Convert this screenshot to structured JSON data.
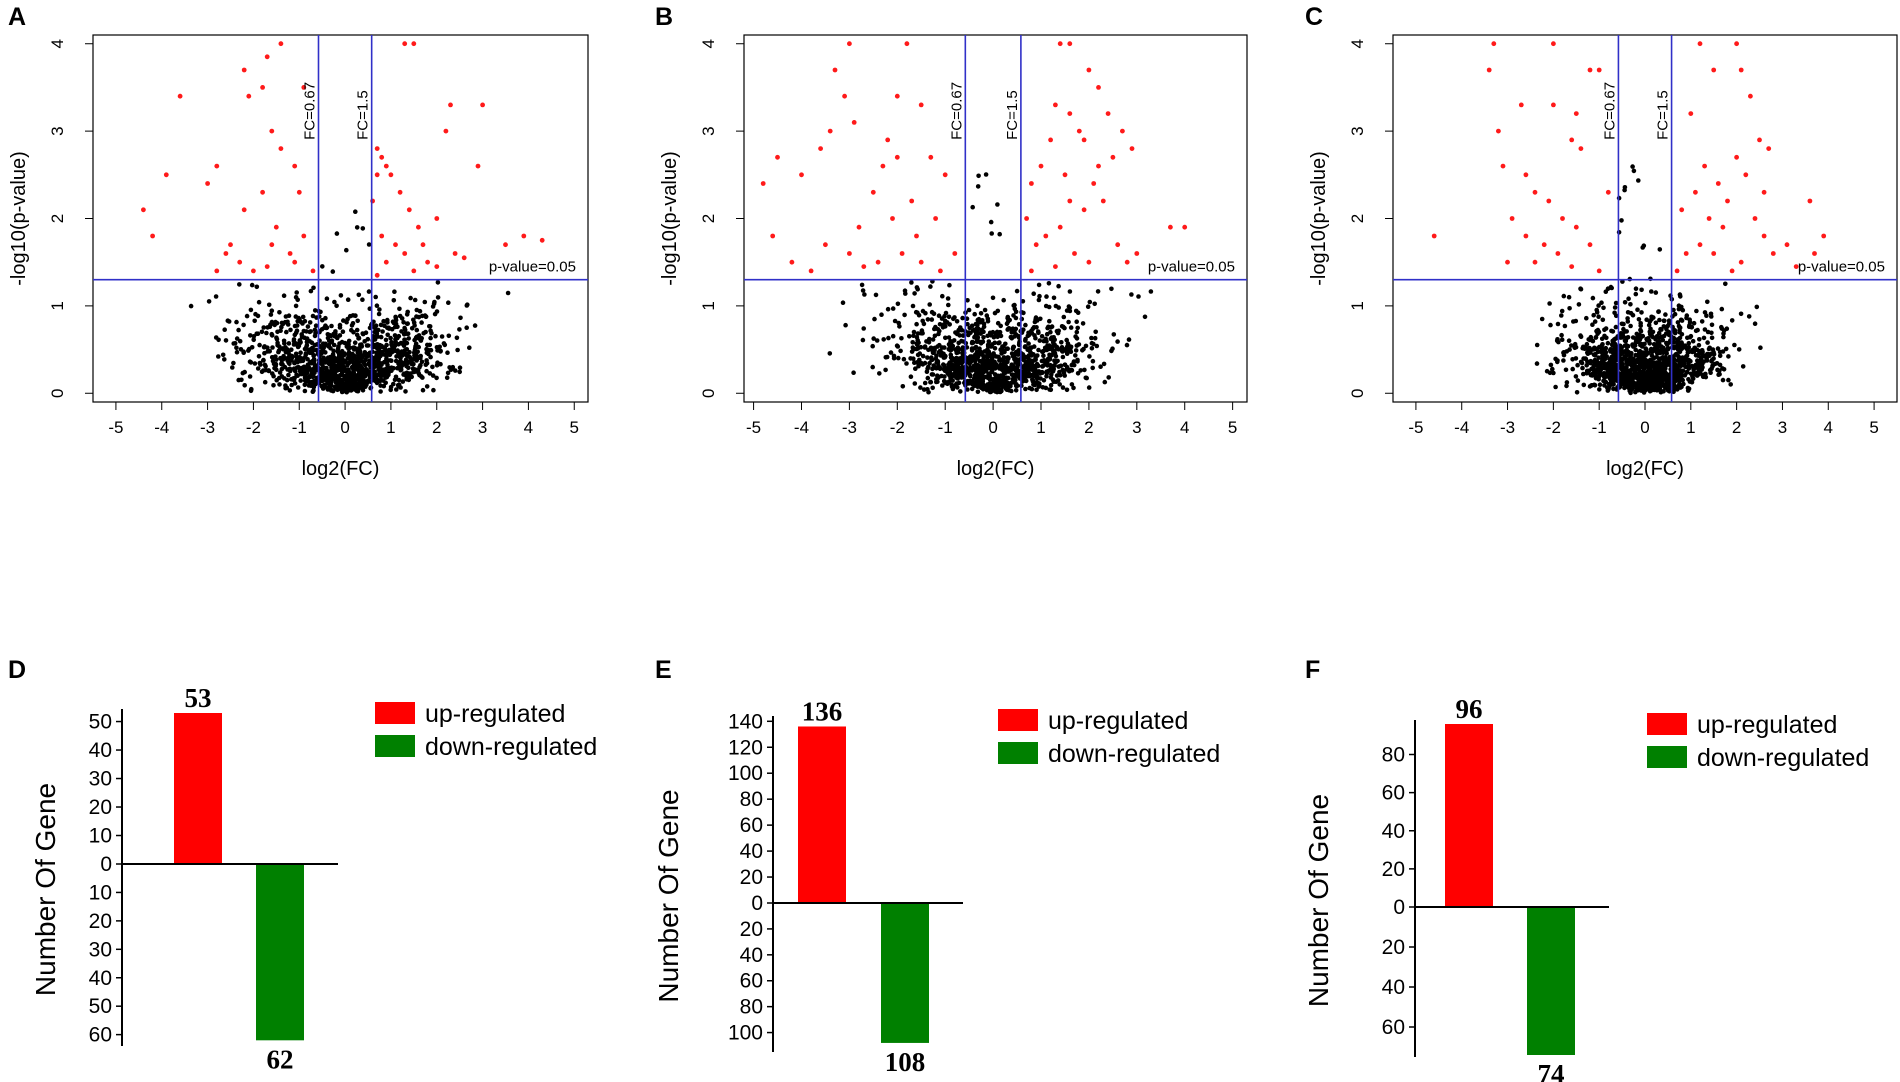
{
  "figure": {
    "colors": {
      "up": "#ff1a1a",
      "up_bar": "#ff0000",
      "down_bar": "#008000",
      "ns": "#000000",
      "threshold": "#3030c8"
    }
  },
  "chart_data": [
    {
      "panel": "A",
      "type": "scatter",
      "title": "",
      "xlabel": "log2(FC)",
      "ylabel": "-log10(p-value)",
      "xlim": [
        -5.5,
        5.3
      ],
      "ylim": [
        -0.1,
        4.1
      ],
      "xticks": [
        "-5",
        "-4",
        "-3",
        "-2",
        "-1",
        "0",
        "1",
        "2",
        "3",
        "4",
        "5"
      ],
      "yticks": [
        "0",
        "1",
        "2",
        "3",
        "4"
      ],
      "thresholds": {
        "fc_low": -0.58,
        "fc_high": 0.58,
        "p": 1.3
      },
      "annotations": {
        "fc_low": "FC=0.67",
        "fc_high": "FC=1.5",
        "p": "p-value=0.05"
      },
      "seed": 11,
      "n_ns": 1300,
      "spread_x": 1.05,
      "up_points": [
        [
          -1.4,
          4.0
        ],
        [
          1.3,
          4.0
        ],
        [
          1.5,
          4.0
        ],
        [
          -1.7,
          3.85
        ],
        [
          -1.8,
          3.5
        ],
        [
          -2.2,
          3.7
        ],
        [
          -3.6,
          3.4
        ],
        [
          -2.1,
          3.4
        ],
        [
          -0.9,
          3.5
        ],
        [
          2.2,
          3.0
        ],
        [
          2.3,
          3.3
        ],
        [
          3.0,
          3.3
        ],
        [
          2.9,
          2.6
        ],
        [
          -2.8,
          2.6
        ],
        [
          -3.0,
          2.4
        ],
        [
          -1.6,
          3.0
        ],
        [
          -1.4,
          2.8
        ],
        [
          -1.1,
          2.6
        ],
        [
          -1.0,
          2.3
        ],
        [
          -3.9,
          2.5
        ],
        [
          -4.4,
          2.1
        ],
        [
          -4.2,
          1.8
        ],
        [
          -2.2,
          2.1
        ],
        [
          -1.8,
          2.3
        ],
        [
          -1.5,
          1.9
        ],
        [
          -1.6,
          1.7
        ],
        [
          -2.5,
          1.7
        ],
        [
          -2.6,
          1.6
        ],
        [
          -2.3,
          1.5
        ],
        [
          -2.0,
          1.4
        ],
        [
          -1.7,
          1.45
        ],
        [
          -1.2,
          1.6
        ],
        [
          -1.1,
          1.5
        ],
        [
          -0.7,
          1.4
        ],
        [
          -0.9,
          1.8
        ],
        [
          -2.8,
          1.4
        ],
        [
          0.7,
          2.8
        ],
        [
          0.8,
          2.7
        ],
        [
          0.9,
          2.6
        ],
        [
          1.0,
          2.5
        ],
        [
          0.7,
          2.5
        ],
        [
          1.2,
          2.3
        ],
        [
          0.6,
          2.2
        ],
        [
          1.4,
          2.1
        ],
        [
          1.6,
          1.9
        ],
        [
          0.8,
          1.8
        ],
        [
          1.1,
          1.7
        ],
        [
          1.3,
          1.6
        ],
        [
          0.9,
          1.5
        ],
        [
          2.4,
          1.6
        ],
        [
          2.6,
          1.55
        ],
        [
          1.8,
          1.5
        ],
        [
          2.0,
          1.45
        ],
        [
          1.5,
          1.4
        ],
        [
          0.7,
          1.35
        ],
        [
          3.5,
          1.7
        ],
        [
          4.3,
          1.75
        ],
        [
          3.9,
          1.8
        ],
        [
          2.0,
          2.0
        ],
        [
          1.7,
          1.7
        ]
      ]
    },
    {
      "panel": "B",
      "type": "scatter",
      "title": "",
      "xlabel": "log2(FC)",
      "ylabel": "-log10(p-value)",
      "xlim": [
        -5.2,
        5.3
      ],
      "ylim": [
        -0.1,
        4.1
      ],
      "xticks": [
        "-5",
        "-4",
        "-3",
        "-2",
        "-1",
        "0",
        "1",
        "2",
        "3",
        "4",
        "5"
      ],
      "yticks": [
        "0",
        "1",
        "2",
        "3",
        "4"
      ],
      "thresholds": {
        "fc_low": -0.58,
        "fc_high": 0.58,
        "p": 1.3
      },
      "annotations": {
        "fc_low": "FC=0.67",
        "fc_high": "FC=1.5",
        "p": "p-value=0.05"
      },
      "seed": 23,
      "n_ns": 1200,
      "spread_x": 1.0,
      "up_points": [
        [
          -3.0,
          4.0
        ],
        [
          -1.8,
          4.0
        ],
        [
          1.4,
          4.0
        ],
        [
          1.6,
          4.0
        ],
        [
          -3.3,
          3.7
        ],
        [
          -3.1,
          3.4
        ],
        [
          -2.0,
          3.4
        ],
        [
          -1.5,
          3.3
        ],
        [
          2.0,
          3.7
        ],
        [
          2.2,
          3.5
        ],
        [
          -2.9,
          3.1
        ],
        [
          -3.4,
          3.0
        ],
        [
          -2.2,
          2.9
        ],
        [
          -1.3,
          2.7
        ],
        [
          -1.0,
          2.5
        ],
        [
          -3.6,
          2.8
        ],
        [
          -4.0,
          2.5
        ],
        [
          -4.5,
          2.7
        ],
        [
          -4.8,
          2.4
        ],
        [
          -4.6,
          1.8
        ],
        [
          -2.5,
          2.3
        ],
        [
          -2.1,
          2.0
        ],
        [
          -1.7,
          2.2
        ],
        [
          -1.2,
          2.0
        ],
        [
          -2.8,
          1.9
        ],
        [
          -3.5,
          1.7
        ],
        [
          -3.0,
          1.6
        ],
        [
          -2.4,
          1.5
        ],
        [
          -1.9,
          1.6
        ],
        [
          -1.5,
          1.5
        ],
        [
          -0.8,
          1.6
        ],
        [
          -3.8,
          1.4
        ],
        [
          -4.2,
          1.5
        ],
        [
          -2.7,
          1.45
        ],
        [
          -1.1,
          1.4
        ],
        [
          1.3,
          3.3
        ],
        [
          1.6,
          3.2
        ],
        [
          1.8,
          3.0
        ],
        [
          2.4,
          3.2
        ],
        [
          2.7,
          3.0
        ],
        [
          2.9,
          2.8
        ],
        [
          2.5,
          2.7
        ],
        [
          1.2,
          2.9
        ],
        [
          1.0,
          2.6
        ],
        [
          0.8,
          2.4
        ],
        [
          1.5,
          2.5
        ],
        [
          2.1,
          2.4
        ],
        [
          2.3,
          2.2
        ],
        [
          1.9,
          2.1
        ],
        [
          1.4,
          1.9
        ],
        [
          1.1,
          1.8
        ],
        [
          0.7,
          2.0
        ],
        [
          0.9,
          1.7
        ],
        [
          1.7,
          1.6
        ],
        [
          2.0,
          1.5
        ],
        [
          2.6,
          1.7
        ],
        [
          2.8,
          1.5
        ],
        [
          3.0,
          1.6
        ],
        [
          1.3,
          1.45
        ],
        [
          0.8,
          1.4
        ],
        [
          3.7,
          1.9
        ],
        [
          4.0,
          1.9
        ],
        [
          -2.3,
          2.6
        ],
        [
          -2.0,
          2.7
        ],
        [
          1.9,
          2.9
        ],
        [
          2.2,
          2.6
        ],
        [
          -1.6,
          1.8
        ],
        [
          1.6,
          2.2
        ]
      ]
    },
    {
      "panel": "C",
      "type": "scatter",
      "title": "",
      "xlabel": "log2(FC)",
      "ylabel": "-log10(p-value)",
      "xlim": [
        -5.5,
        5.5
      ],
      "ylim": [
        -0.1,
        4.1
      ],
      "xticks": [
        "-5",
        "-4",
        "-3",
        "-2",
        "-1",
        "0",
        "1",
        "2",
        "3",
        "4",
        "5"
      ],
      "yticks": [
        "0",
        "1",
        "2",
        "3",
        "4"
      ],
      "thresholds": {
        "fc_low": -0.58,
        "fc_high": 0.58,
        "p": 1.3
      },
      "annotations": {
        "fc_low": "FC=0.67",
        "fc_high": "FC=1.5",
        "p": "p-value=0.05"
      },
      "seed": 37,
      "n_ns": 1300,
      "spread_x": 0.8,
      "up_points": [
        [
          -3.3,
          4.0
        ],
        [
          -3.4,
          3.7
        ],
        [
          -2.0,
          4.0
        ],
        [
          -1.2,
          3.7
        ],
        [
          -1.0,
          3.7
        ],
        [
          1.2,
          4.0
        ],
        [
          2.0,
          4.0
        ],
        [
          1.5,
          3.7
        ],
        [
          2.1,
          3.7
        ],
        [
          -2.7,
          3.3
        ],
        [
          -2.0,
          3.3
        ],
        [
          -1.5,
          3.2
        ],
        [
          -3.2,
          3.0
        ],
        [
          -1.6,
          2.9
        ],
        [
          -1.4,
          2.8
        ],
        [
          1.0,
          3.2
        ],
        [
          2.3,
          3.4
        ],
        [
          2.5,
          2.9
        ],
        [
          2.7,
          2.8
        ],
        [
          -3.1,
          2.6
        ],
        [
          -2.6,
          2.5
        ],
        [
          -2.4,
          2.3
        ],
        [
          -2.1,
          2.2
        ],
        [
          -1.8,
          2.0
        ],
        [
          -1.5,
          1.9
        ],
        [
          -2.9,
          2.0
        ],
        [
          -2.6,
          1.8
        ],
        [
          -2.2,
          1.7
        ],
        [
          -1.9,
          1.6
        ],
        [
          -1.2,
          1.7
        ],
        [
          -3.0,
          1.5
        ],
        [
          -2.4,
          1.5
        ],
        [
          -1.6,
          1.45
        ],
        [
          -1.0,
          1.4
        ],
        [
          -4.6,
          1.8
        ],
        [
          1.3,
          2.6
        ],
        [
          1.6,
          2.4
        ],
        [
          1.8,
          2.2
        ],
        [
          2.0,
          2.7
        ],
        [
          2.2,
          2.5
        ],
        [
          1.1,
          2.3
        ],
        [
          0.8,
          2.1
        ],
        [
          1.4,
          2.0
        ],
        [
          1.7,
          1.9
        ],
        [
          2.4,
          2.0
        ],
        [
          2.6,
          1.8
        ],
        [
          1.2,
          1.7
        ],
        [
          0.9,
          1.6
        ],
        [
          1.5,
          1.6
        ],
        [
          2.1,
          1.5
        ],
        [
          2.8,
          1.6
        ],
        [
          3.1,
          1.7
        ],
        [
          3.3,
          1.45
        ],
        [
          3.6,
          2.2
        ],
        [
          3.9,
          1.8
        ],
        [
          3.7,
          1.6
        ],
        [
          0.7,
          1.4
        ],
        [
          1.9,
          1.4
        ],
        [
          -0.8,
          2.3
        ],
        [
          2.6,
          2.3
        ]
      ]
    },
    {
      "panel": "D",
      "type": "bar",
      "title": "",
      "xlabel": "",
      "ylabel": "Number Of Gene",
      "categories": [
        "up-regulated",
        "down-regulated"
      ],
      "values": [
        53,
        -62
      ],
      "value_labels": [
        "53",
        "62"
      ],
      "ylim": [
        -64,
        53
      ],
      "yticks": [
        {
          "v": 50,
          "label": "50"
        },
        {
          "v": 40,
          "label": "40"
        },
        {
          "v": 30,
          "label": "30"
        },
        {
          "v": 20,
          "label": "20"
        },
        {
          "v": 10,
          "label": "10"
        },
        {
          "v": 0,
          "label": "0"
        },
        {
          "v": -10,
          "label": "10"
        },
        {
          "v": -20,
          "label": "20"
        },
        {
          "v": -30,
          "label": "30"
        },
        {
          "v": -40,
          "label": "40"
        },
        {
          "v": -50,
          "label": "50"
        },
        {
          "v": -60,
          "label": "60"
        }
      ],
      "legend": [
        "up-regulated",
        "down-regulated"
      ]
    },
    {
      "panel": "E",
      "type": "bar",
      "title": "",
      "xlabel": "",
      "ylabel": "Number Of Gene",
      "categories": [
        "up-regulated",
        "down-regulated"
      ],
      "values": [
        136,
        -108
      ],
      "value_labels": [
        "136",
        "108"
      ],
      "ylim": [
        -115,
        141
      ],
      "yticks": [
        {
          "v": 140,
          "label": "140"
        },
        {
          "v": 120,
          "label": "120"
        },
        {
          "v": 100,
          "label": "100"
        },
        {
          "v": 80,
          "label": "80"
        },
        {
          "v": 60,
          "label": "60"
        },
        {
          "v": 40,
          "label": "40"
        },
        {
          "v": 20,
          "label": "20"
        },
        {
          "v": 0,
          "label": "0"
        },
        {
          "v": -20,
          "label": "20"
        },
        {
          "v": -40,
          "label": "40"
        },
        {
          "v": -60,
          "label": "60"
        },
        {
          "v": -80,
          "label": "80"
        },
        {
          "v": -100,
          "label": "100"
        }
      ],
      "legend": [
        "up-regulated",
        "down-regulated"
      ]
    },
    {
      "panel": "F",
      "type": "bar",
      "title": "",
      "xlabel": "",
      "ylabel": "Number Of Gene",
      "categories": [
        "up-regulated",
        "down-regulated"
      ],
      "values": [
        96,
        -74
      ],
      "value_labels": [
        "96",
        "74"
      ],
      "ylim": [
        -75,
        96
      ],
      "yticks": [
        {
          "v": 80,
          "label": "80"
        },
        {
          "v": 60,
          "label": "60"
        },
        {
          "v": 40,
          "label": "40"
        },
        {
          "v": 20,
          "label": "20"
        },
        {
          "v": 0,
          "label": "0"
        },
        {
          "v": -20,
          "label": "20"
        },
        {
          "v": -40,
          "label": "40"
        },
        {
          "v": -60,
          "label": "60"
        }
      ],
      "legend": [
        "up-regulated",
        "down-regulated"
      ]
    }
  ]
}
